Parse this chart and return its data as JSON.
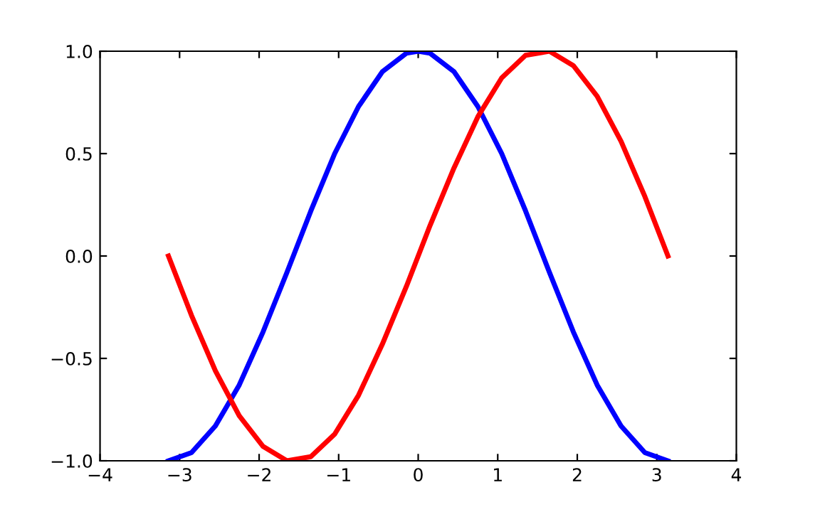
{
  "chart_data": {
    "type": "line",
    "x": [
      -3.14,
      -2.85,
      -2.55,
      -2.25,
      -1.95,
      -1.65,
      -1.35,
      -1.05,
      -0.75,
      -0.45,
      -0.15,
      0,
      0.15,
      0.45,
      0.75,
      1.05,
      1.35,
      1.65,
      1.95,
      2.25,
      2.55,
      2.85,
      3.14
    ],
    "series": [
      {
        "color": "#0000ff",
        "values": [
          -1.0,
          -0.96,
          -0.83,
          -0.63,
          -0.37,
          -0.08,
          0.22,
          0.5,
          0.73,
          0.9,
          0.99,
          1.0,
          0.99,
          0.9,
          0.73,
          0.5,
          0.22,
          -0.08,
          -0.37,
          -0.63,
          -0.83,
          -0.96,
          -1.0
        ]
      },
      {
        "color": "#ff0000",
        "values": [
          0.0,
          -0.29,
          -0.56,
          -0.78,
          -0.93,
          -1.0,
          -0.98,
          -0.87,
          -0.68,
          -0.43,
          -0.15,
          0.0,
          0.15,
          0.43,
          0.68,
          0.87,
          0.98,
          1.0,
          0.93,
          0.78,
          0.56,
          0.29,
          0.0
        ]
      }
    ],
    "xlim": [
      -4,
      4
    ],
    "xticks": [
      -4,
      -3,
      -2,
      -1,
      0,
      1,
      2,
      3,
      4
    ],
    "ylim": [
      -1.0,
      1.0
    ],
    "yticks": [
      {
        "value": -1.0,
        "label": "−1.0"
      },
      {
        "value": -0.5,
        "label": "−0.5"
      },
      {
        "value": 0.0,
        "label": "0.0"
      },
      {
        "value": 0.5,
        "label": "0.5"
      },
      {
        "value": 1.0,
        "label": "1.0"
      }
    ],
    "grid": false,
    "legend": false,
    "marker": "none",
    "line_style": "solid"
  }
}
